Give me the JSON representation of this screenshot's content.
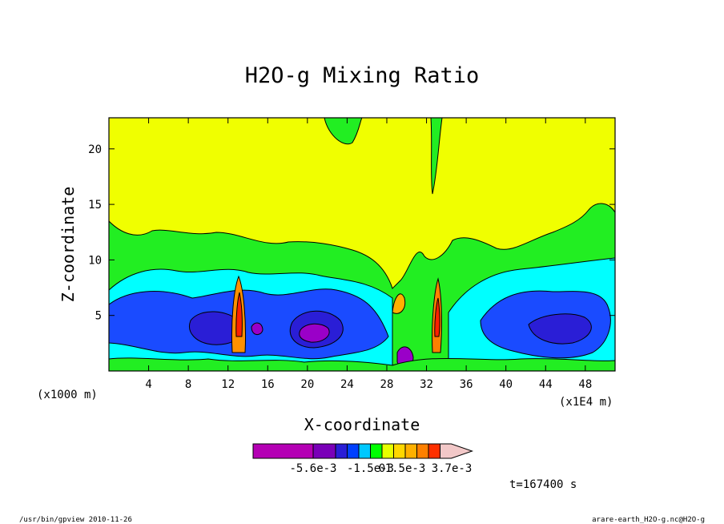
{
  "chart_data": {
    "type": "heatmap",
    "title": "H2O-g Mixing Ratio",
    "xlabel": "X-coordinate",
    "ylabel": "Z-coordinate",
    "x_unit_left": "(x1000 m)",
    "x_unit_right": "(x1E4 m)",
    "xlim": [
      0,
      51
    ],
    "ylim": [
      0,
      22.8
    ],
    "x_ticks": [
      "4",
      "8",
      "12",
      "16",
      "20",
      "24",
      "28",
      "32",
      "36",
      "40",
      "44",
      "48"
    ],
    "x_tick_values": [
      4,
      8,
      12,
      16,
      20,
      24,
      28,
      32,
      36,
      40,
      44,
      48
    ],
    "y_ticks": [
      "5",
      "10",
      "15",
      "20"
    ],
    "y_tick_values": [
      5,
      10,
      15,
      20
    ],
    "time_label": "t=167400 s",
    "colorbar": {
      "colors": [
        "#b400b4",
        "#7a00b8",
        "#2a1ed6",
        "#0040ff",
        "#00c8ff",
        "#00ff00",
        "#e6ff00",
        "#ffd700",
        "#ffb000",
        "#ff8000",
        "#ff3000",
        "#f2c8c8"
      ],
      "labels": [
        "-5.6e-3",
        "-1.5e-3",
        "0",
        "1.5e-3",
        "3.7e-3"
      ],
      "label_positions": [
        0,
        4,
        5,
        7,
        11
      ]
    },
    "regions": [
      {
        "level": "yellow",
        "color": "#f0ff00",
        "desc": "upper domain above ~12"
      },
      {
        "level": "green",
        "color": "#22ee22",
        "desc": "band ~8-13 and surface"
      },
      {
        "level": "cyan",
        "color": "#00ffff",
        "desc": "band ~6-8"
      },
      {
        "level": "blue",
        "color": "#1a4bff",
        "desc": "band ~1.5-7"
      },
      {
        "level": "navy",
        "color": "#2a1ed6",
        "desc": "cores near x=12,20,46"
      },
      {
        "level": "purple",
        "color": "#9a00c8",
        "desc": "cores near x=15,21,30"
      }
    ]
  },
  "footer": {
    "left": "/usr/bin/gpview  2010-11-26",
    "right": "arare-earth_H2O-g.nc@H2O-g"
  }
}
